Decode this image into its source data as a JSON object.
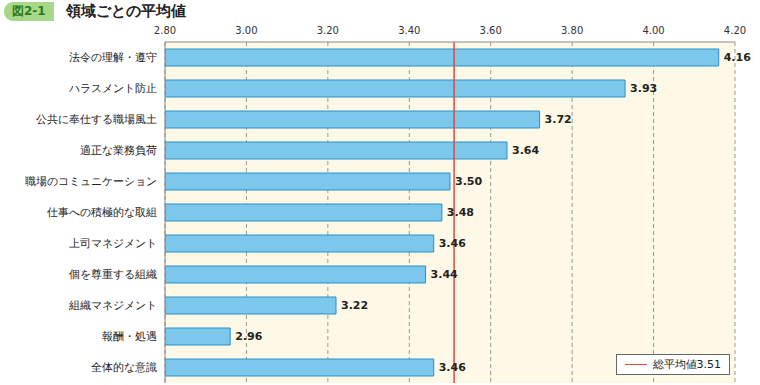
{
  "chart_data": {
    "type": "bar",
    "orientation": "horizontal",
    "figure_label": "図2-1",
    "title": "領域ごとの平均値",
    "categories": [
      "法令の理解・遵守",
      "ハラスメント防止",
      "公共に奉仕する職場風土",
      "適正な業務負荷",
      "職場のコミュニケーション",
      "仕事への積極的な取組",
      "上司マネジメント",
      "個を尊重する組織",
      "組織マネジメント",
      "報酬・処遇",
      "全体的な意識"
    ],
    "values": [
      4.16,
      3.93,
      3.72,
      3.64,
      3.5,
      3.48,
      3.46,
      3.44,
      3.22,
      2.96,
      3.46
    ],
    "value_labels": [
      "4.16",
      "3.93",
      "3.72",
      "3.64",
      "3.50",
      "3.48",
      "3.46",
      "3.44",
      "3.22",
      "2.96",
      "3.46"
    ],
    "data_labels": true,
    "color": "#7cc8ec",
    "xlim": [
      2.8,
      4.2
    ],
    "xticks": [
      {
        "value": 2.8,
        "label": "2.80"
      },
      {
        "value": 3,
        "label": "3.00"
      },
      {
        "value": 3.2,
        "label": "3.20"
      },
      {
        "value": 3.4,
        "label": "3.40"
      },
      {
        "value": 3.6,
        "label": "3.60"
      },
      {
        "value": 3.8,
        "label": "3.80"
      },
      {
        "value": 4,
        "label": "4.00"
      },
      {
        "value": 4.2,
        "label": "4.20"
      }
    ],
    "grid": true,
    "reference_line": {
      "value": 3.51,
      "label": "総平均値3.51",
      "color": "#e8463c"
    }
  }
}
